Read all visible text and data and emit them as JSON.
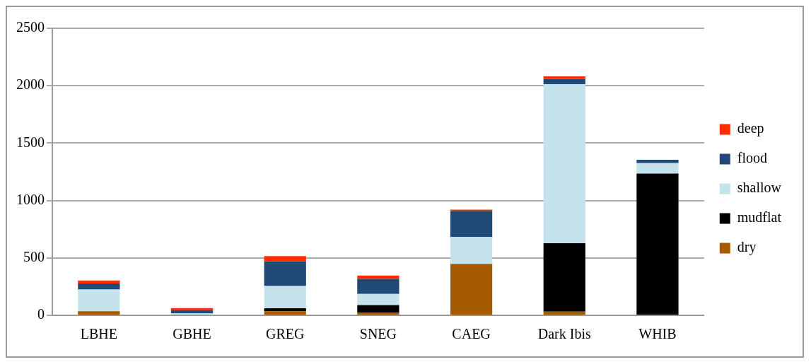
{
  "chart_data": {
    "type": "bar",
    "stacked": true,
    "categories": [
      "LBHE",
      "GBHE",
      "GREG",
      "SNEG",
      "CAEG",
      "Dark Ibis",
      "WHIB"
    ],
    "series": [
      {
        "name": "dry",
        "color": "#a65a00",
        "values": [
          36,
          0,
          36,
          22,
          448,
          32,
          0
        ]
      },
      {
        "name": "mudflat",
        "color": "#000000",
        "values": [
          0,
          0,
          25,
          68,
          0,
          596,
          1235
        ]
      },
      {
        "name": "shallow",
        "color": "#c4e3ec",
        "values": [
          189,
          18,
          194,
          97,
          234,
          1385,
          90
        ]
      },
      {
        "name": "flood",
        "color": "#1f4a77",
        "values": [
          52,
          27,
          214,
          130,
          227,
          47,
          30
        ]
      },
      {
        "name": "deep",
        "color": "#ff2a00",
        "values": [
          27,
          18,
          47,
          29,
          11,
          22,
          0
        ]
      }
    ],
    "ylim": [
      0,
      2500
    ],
    "yticks": [
      0,
      500,
      1000,
      1500,
      2000,
      2500
    ],
    "grid": "y",
    "legend": "right"
  }
}
